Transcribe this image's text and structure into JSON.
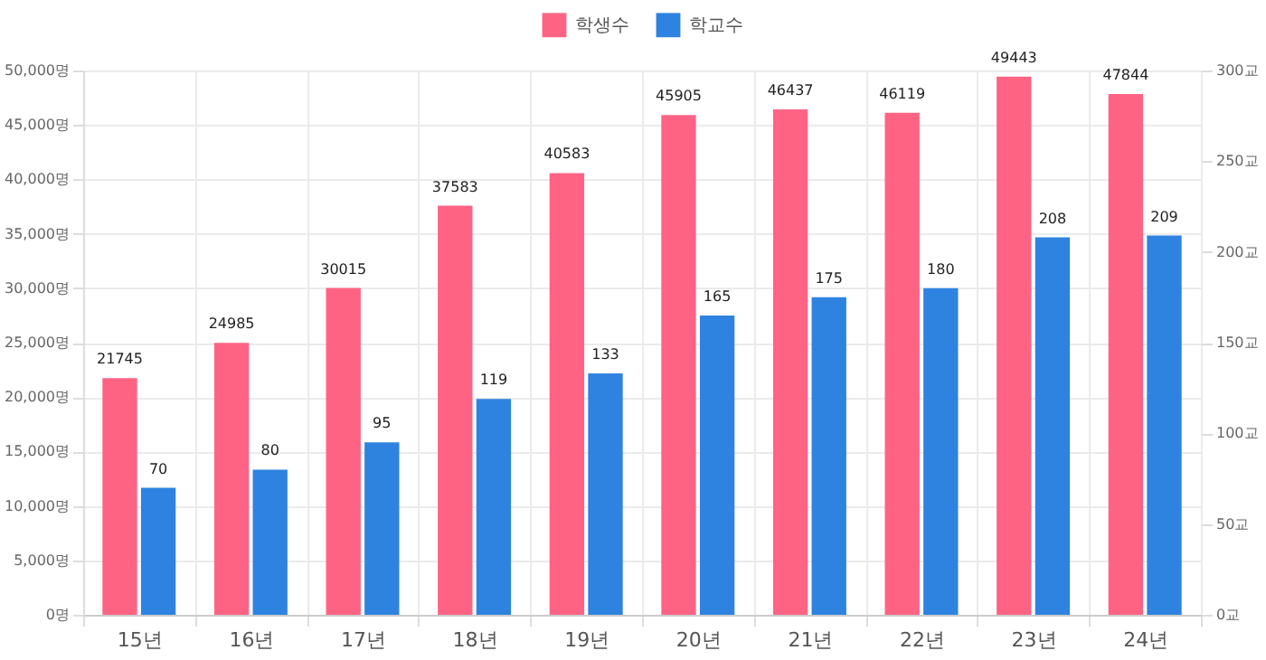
{
  "chart_data": {
    "type": "bar",
    "categories": [
      "15년",
      "16년",
      "17년",
      "18년",
      "19년",
      "20년",
      "21년",
      "22년",
      "23년",
      "24년"
    ],
    "series": [
      {
        "name": "학생수",
        "color": "#ff6384",
        "values": [
          21745,
          24985,
          30015,
          37583,
          40583,
          45905,
          46437,
          46119,
          49443,
          47844
        ]
      },
      {
        "name": "학교수",
        "color": "#2e83e0",
        "axis": "y2",
        "values": [
          70,
          80,
          95,
          119,
          133,
          165,
          175,
          180,
          208,
          209
        ]
      }
    ],
    "ylim": [
      0,
      50000
    ],
    "yticks": [
      {
        "value": 0,
        "label": "0명"
      },
      {
        "value": 5000,
        "label": "5,000명"
      },
      {
        "value": 10000,
        "label": "10,000명"
      },
      {
        "value": 15000,
        "label": "15,000명"
      },
      {
        "value": 20000,
        "label": "20,000명"
      },
      {
        "value": 25000,
        "label": "25,000명"
      },
      {
        "value": 30000,
        "label": "30,000명"
      },
      {
        "value": 35000,
        "label": "35,000명"
      },
      {
        "value": 40000,
        "label": "40,000명"
      },
      {
        "value": 45000,
        "label": "45,000명"
      },
      {
        "value": 50000,
        "label": "50,000명"
      }
    ],
    "y2lim": [
      0,
      300
    ],
    "y2ticks": [
      {
        "value": 0,
        "label": "0교"
      },
      {
        "value": 50,
        "label": "50교"
      },
      {
        "value": 100,
        "label": "100교"
      },
      {
        "value": 150,
        "label": "150교"
      },
      {
        "value": 200,
        "label": "200교"
      },
      {
        "value": 250,
        "label": "250교"
      },
      {
        "value": 300,
        "label": "300교"
      }
    ],
    "data_labels": true,
    "grid": true,
    "legend": "top"
  }
}
